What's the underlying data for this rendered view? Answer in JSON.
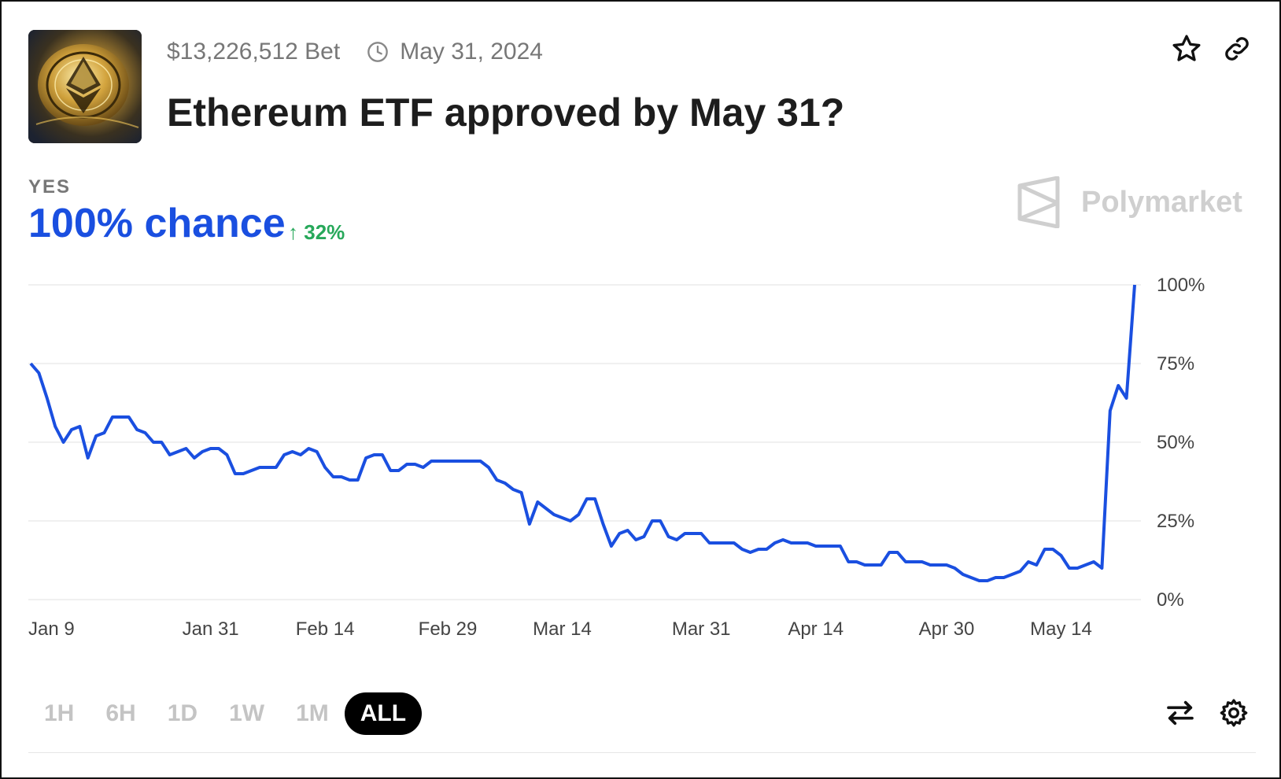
{
  "header": {
    "volume": "$13,226,512 Bet",
    "end_date": "May 31, 2024",
    "title": "Ethereum ETF approved by May 31?"
  },
  "outcome": {
    "label": "YES",
    "chance": "100% chance",
    "delta": "32%"
  },
  "brand": {
    "name": "Polymarket"
  },
  "icons": {
    "thumbnail": "ethereum-coin-image",
    "clock": "clock-icon",
    "favorite": "star-icon",
    "share": "link-icon",
    "swap": "swap-arrows-icon",
    "settings": "gear-icon"
  },
  "colors": {
    "line": "#1a4fe0",
    "chance": "#1a4fe0",
    "delta": "#27a85a",
    "active_range": "#000000"
  },
  "range_buttons": [
    {
      "label": "1H",
      "active": false
    },
    {
      "label": "6H",
      "active": false
    },
    {
      "label": "1D",
      "active": false
    },
    {
      "label": "1W",
      "active": false
    },
    {
      "label": "1M",
      "active": false
    },
    {
      "label": "ALL",
      "active": true
    }
  ],
  "chart_data": {
    "type": "line",
    "title": "",
    "xlabel": "",
    "ylabel": "",
    "ylim": [
      0,
      100
    ],
    "y_ticks": [
      {
        "value": 100,
        "label": "100%"
      },
      {
        "value": 75,
        "label": "75%"
      },
      {
        "value": 50,
        "label": "50%"
      },
      {
        "value": 25,
        "label": "25%"
      },
      {
        "value": 0,
        "label": "0%"
      }
    ],
    "x_ticks": [
      {
        "day": 0,
        "label": "Jan 9"
      },
      {
        "day": 22,
        "label": "Jan 31"
      },
      {
        "day": 36,
        "label": "Feb 14"
      },
      {
        "day": 51,
        "label": "Feb 29"
      },
      {
        "day": 65,
        "label": "Mar 14"
      },
      {
        "day": 82,
        "label": "Mar 31"
      },
      {
        "day": 96,
        "label": "Apr 14"
      },
      {
        "day": 112,
        "label": "Apr 30"
      },
      {
        "day": 126,
        "label": "May 14"
      }
    ],
    "grid": true,
    "series": [
      {
        "name": "Yes",
        "x": [
          0,
          1,
          2,
          3,
          4,
          5,
          6,
          7,
          8,
          9,
          10,
          11,
          12,
          13,
          14,
          15,
          16,
          17,
          18,
          19,
          20,
          21,
          22,
          23,
          24,
          25,
          26,
          27,
          28,
          29,
          30,
          31,
          32,
          33,
          34,
          35,
          36,
          37,
          38,
          39,
          40,
          41,
          42,
          43,
          44,
          45,
          46,
          47,
          48,
          49,
          50,
          51,
          52,
          53,
          54,
          55,
          56,
          57,
          58,
          59,
          60,
          61,
          62,
          63,
          64,
          65,
          66,
          67,
          68,
          69,
          70,
          71,
          72,
          73,
          74,
          75,
          76,
          77,
          78,
          79,
          80,
          81,
          82,
          83,
          84,
          85,
          86,
          87,
          88,
          89,
          90,
          91,
          92,
          93,
          94,
          95,
          96,
          97,
          98,
          99,
          100,
          101,
          102,
          103,
          104,
          105,
          106,
          107,
          108,
          109,
          110,
          111,
          112,
          113,
          114,
          115,
          116,
          117,
          118,
          119,
          120,
          121,
          122,
          123,
          124,
          125,
          126,
          127,
          128,
          129,
          130,
          131,
          132,
          133,
          134,
          135
        ],
        "y": [
          75,
          72,
          64,
          55,
          50,
          54,
          55,
          45,
          52,
          53,
          58,
          58,
          58,
          54,
          53,
          50,
          50,
          46,
          47,
          48,
          45,
          47,
          48,
          48,
          46,
          40,
          40,
          41,
          42,
          42,
          42,
          46,
          47,
          46,
          48,
          47,
          42,
          39,
          39,
          38,
          38,
          45,
          46,
          46,
          41,
          41,
          43,
          43,
          42,
          44,
          44,
          44,
          44,
          44,
          44,
          44,
          42,
          38,
          37,
          35,
          34,
          24,
          31,
          29,
          27,
          26,
          25,
          27,
          32,
          32,
          24,
          17,
          21,
          22,
          19,
          20,
          25,
          25,
          20,
          19,
          21,
          21,
          21,
          18,
          18,
          18,
          18,
          16,
          15,
          16,
          16,
          18,
          19,
          18,
          18,
          18,
          17,
          17,
          17,
          17,
          12,
          12,
          11,
          11,
          11,
          15,
          15,
          12,
          12,
          12,
          11,
          11,
          11,
          10,
          8,
          7,
          6,
          6,
          7,
          7,
          8,
          9,
          12,
          11,
          16,
          16,
          14,
          10,
          10,
          11,
          12,
          10,
          60,
          68,
          64,
          100
        ]
      }
    ]
  }
}
